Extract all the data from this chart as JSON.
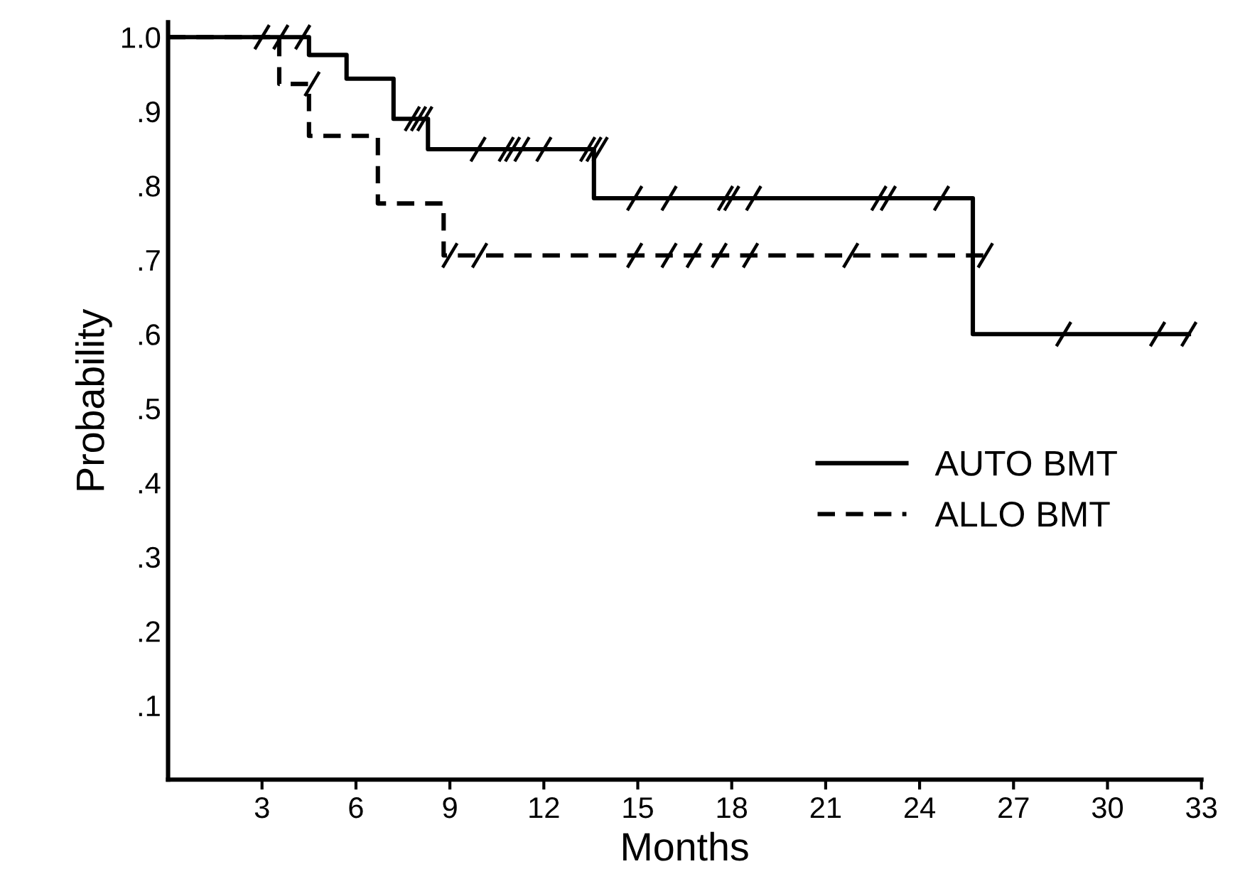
{
  "chart_data": {
    "type": "step",
    "xlabel": "Months",
    "ylabel": "Probability",
    "xlim": [
      0,
      33
    ],
    "xticks": [
      3,
      6,
      9,
      12,
      15,
      18,
      21,
      24,
      27,
      30,
      33
    ],
    "ylim": [
      0,
      1.02
    ],
    "yticks": [
      {
        "value": 0.1,
        "label": ".1"
      },
      {
        "value": 0.2,
        "label": ".2"
      },
      {
        "value": 0.3,
        "label": ".3"
      },
      {
        "value": 0.4,
        "label": ".4"
      },
      {
        "value": 0.5,
        "label": ".5"
      },
      {
        "value": 0.6,
        "label": ".6"
      },
      {
        "value": 0.7,
        "label": ".7"
      },
      {
        "value": 0.8,
        "label": ".8"
      },
      {
        "value": 0.9,
        "label": ".9"
      },
      {
        "value": 1.0,
        "label": "1.0"
      }
    ],
    "grid": false,
    "legend": "right",
    "series": [
      {
        "name": "AUTO BMT",
        "color": "#000000",
        "line_style": "solid",
        "x": [
          0,
          4.5,
          5.7,
          7.2,
          8.3,
          13.6,
          25.7,
          32.6
        ],
        "values": [
          1.0,
          0.976,
          0.944,
          0.89,
          0.849,
          0.783,
          0.6,
          0.6
        ]
      },
      {
        "name": "ALLO BMT",
        "color": "#000000",
        "line_style": "dashed",
        "x": [
          0,
          3.55,
          4.5,
          6.7,
          8.8,
          26.3
        ],
        "values": [
          1.0,
          0.937,
          0.867,
          0.776,
          0.706,
          0.706
        ]
      },
      {
        "type": "scatter",
        "color": "#000000",
        "marker": "cross",
        "x": [
          3.0,
          3.6,
          4.3,
          7.8,
          8.0,
          8.2,
          9.9,
          10.8,
          11.0,
          11.3,
          12.0,
          13.4,
          13.6,
          13.8,
          14.9,
          16.0,
          17.8,
          18.0,
          18.7,
          22.7,
          23.0,
          24.7,
          28.6,
          31.6,
          32.6
        ],
        "values": [
          1.0,
          1.0,
          1.0,
          0.89,
          0.89,
          0.89,
          0.849,
          0.849,
          0.849,
          0.849,
          0.849,
          0.849,
          0.849,
          0.849,
          0.783,
          0.783,
          0.783,
          0.783,
          0.783,
          0.783,
          0.783,
          0.783,
          0.6,
          0.6,
          0.6
        ]
      },
      {
        "type": "scatter",
        "color": "#000000",
        "marker": "cross",
        "x": [
          4.6,
          9.0,
          9.95,
          14.9,
          16.0,
          16.8,
          17.6,
          18.6,
          21.8,
          26.1
        ],
        "values": [
          0.937,
          0.706,
          0.706,
          0.706,
          0.706,
          0.706,
          0.706,
          0.706,
          0.706,
          0.706
        ]
      }
    ]
  }
}
